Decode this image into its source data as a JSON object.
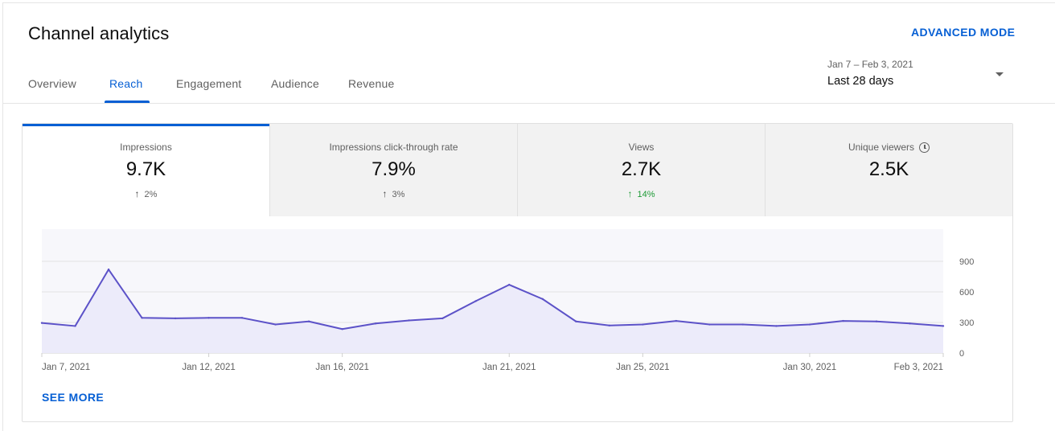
{
  "header": {
    "title": "Channel analytics",
    "advanced_mode": "ADVANCED MODE",
    "date_range": "Jan 7 – Feb 3, 2021",
    "date_label": "Last 28 days"
  },
  "tabs": [
    {
      "label": "Overview"
    },
    {
      "label": "Reach",
      "active": true
    },
    {
      "label": "Engagement"
    },
    {
      "label": "Audience"
    },
    {
      "label": "Revenue"
    }
  ],
  "metrics": [
    {
      "label": "Impressions",
      "value": "9.7K",
      "change": "2%",
      "arrow": "↑"
    },
    {
      "label": "Impressions click-through rate",
      "value": "7.9%",
      "change": "3%",
      "arrow": "↑"
    },
    {
      "label": "Views",
      "value": "2.7K",
      "change": "14%",
      "arrow": "↑"
    },
    {
      "label": "Unique viewers",
      "value": "2.5K",
      "change": "",
      "arrow": ""
    }
  ],
  "see_more": "SEE MORE",
  "colors": {
    "accent": "#065fd4",
    "line": "#5c52c8",
    "area": "#ecebfa",
    "positive": "#1d9a35"
  },
  "chart_data": {
    "type": "area",
    "x": [
      "Jan 7, 2021",
      "Jan 8, 2021",
      "Jan 9, 2021",
      "Jan 10, 2021",
      "Jan 11, 2021",
      "Jan 12, 2021",
      "Jan 13, 2021",
      "Jan 14, 2021",
      "Jan 15, 2021",
      "Jan 16, 2021",
      "Jan 17, 2021",
      "Jan 18, 2021",
      "Jan 19, 2021",
      "Jan 20, 2021",
      "Jan 21, 2021",
      "Jan 22, 2021",
      "Jan 23, 2021",
      "Jan 24, 2021",
      "Jan 25, 2021",
      "Jan 26, 2021",
      "Jan 27, 2021",
      "Jan 28, 2021",
      "Jan 29, 2021",
      "Jan 30, 2021",
      "Jan 31, 2021",
      "Feb 1, 2021",
      "Feb 2, 2021",
      "Feb 3, 2021"
    ],
    "series": [
      {
        "values": [
          295,
          265,
          820,
          345,
          340,
          345,
          345,
          280,
          310,
          235,
          290,
          320,
          340,
          510,
          670,
          530,
          310,
          270,
          280,
          315,
          280,
          280,
          265,
          280,
          315,
          310,
          290,
          265
        ]
      }
    ],
    "xticks": [
      "Jan 7, 2021",
      "Jan 12, 2021",
      "Jan 16, 2021",
      "Jan 21, 2021",
      "Jan 25, 2021",
      "Jan 30, 2021",
      "Feb 3, 2021"
    ],
    "yticks": [
      0,
      300,
      600,
      900
    ],
    "ylim": [
      0,
      900
    ],
    "grid": true
  }
}
